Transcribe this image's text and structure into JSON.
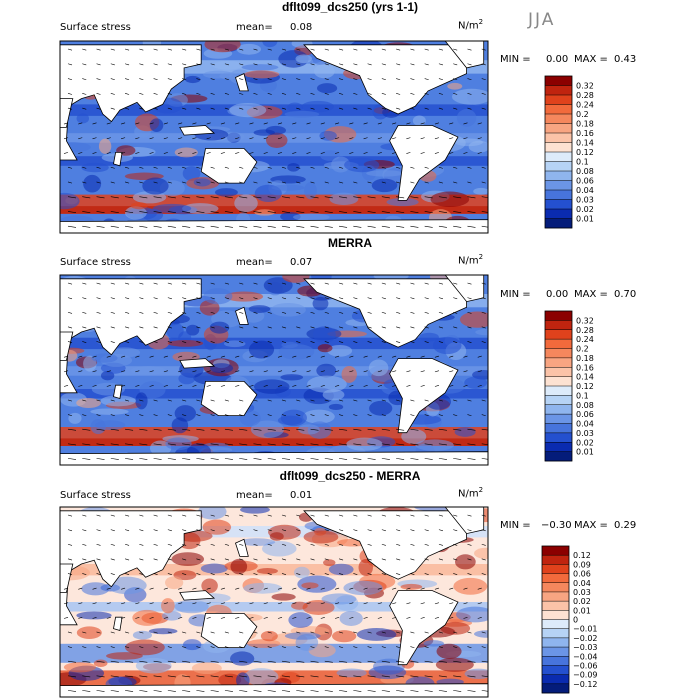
{
  "season": "JJA",
  "panels": [
    {
      "title": "dflt099_dcs250 (yrs 1-1)",
      "variable": "Surface stress",
      "mean_label": "mean=",
      "mean": "0.08",
      "units_base": "N/m",
      "units_exp": "2",
      "min_label": "MIN =",
      "min": "0.00",
      "max_label": "MAX =",
      "max": "0.43",
      "levels": [
        "0.32",
        "0.28",
        "0.24",
        "0.2",
        "0.18",
        "0.16",
        "0.14",
        "0.12",
        "0.1",
        "0.08",
        "0.06",
        "0.04",
        "0.03",
        "0.02",
        "0.01"
      ],
      "colors": [
        "#8b0000",
        "#c0240f",
        "#e0421c",
        "#f26a3c",
        "#f5875d",
        "#f8a582",
        "#fbc3a8",
        "#fde2d2",
        "#ddebfa",
        "#b6d3f5",
        "#8fb5ee",
        "#6b95e6",
        "#4774dc",
        "#2450cf",
        "#0a2bb0",
        "#041c7a"
      ]
    },
    {
      "title": "MERRA",
      "variable": "Surface stress",
      "mean_label": "mean=",
      "mean": "0.07",
      "units_base": "N/m",
      "units_exp": "2",
      "min_label": "MIN =",
      "min": "0.00",
      "max_label": "MAX =",
      "max": "0.70",
      "levels": [
        "0.32",
        "0.28",
        "0.24",
        "0.2",
        "0.18",
        "0.16",
        "0.14",
        "0.12",
        "0.1",
        "0.08",
        "0.06",
        "0.04",
        "0.03",
        "0.02",
        "0.01"
      ],
      "colors": [
        "#8b0000",
        "#c0240f",
        "#e0421c",
        "#f26a3c",
        "#f5875d",
        "#f8a582",
        "#fbc3a8",
        "#fde2d2",
        "#ddebfa",
        "#b6d3f5",
        "#8fb5ee",
        "#6b95e6",
        "#4774dc",
        "#2450cf",
        "#0a2bb0",
        "#041c7a"
      ]
    },
    {
      "title": "dflt099_dcs250 - MERRA",
      "variable": "Surface stress",
      "mean_label": "mean=",
      "mean": "0.01",
      "units_base": "N/m",
      "units_exp": "2",
      "min_label": "MIN =",
      "min": "−0.30",
      "max_label": "MAX =",
      "max": "0.29",
      "levels": [
        "0.12",
        "0.09",
        "0.06",
        "0.04",
        "0.03",
        "0.02",
        "0.01",
        "0",
        "−0.01",
        "−0.02",
        "−0.03",
        "−0.04",
        "−0.06",
        "−0.09",
        "−0.12"
      ],
      "colors": [
        "#8b0000",
        "#c0240f",
        "#e0421c",
        "#f26a3c",
        "#f5875d",
        "#f8a582",
        "#fbc3a8",
        "#fde2d2",
        "#ddebfa",
        "#b6d3f5",
        "#8fb5ee",
        "#6b95e6",
        "#4774dc",
        "#2450cf",
        "#0a2bb0",
        "#041c7a"
      ]
    }
  ]
}
